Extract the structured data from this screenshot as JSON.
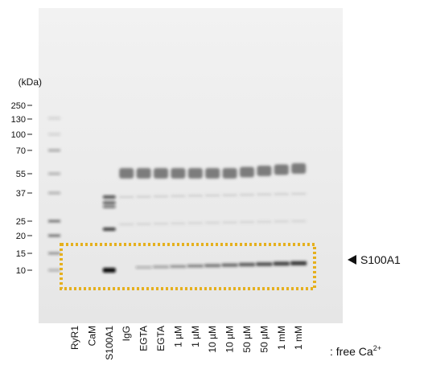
{
  "unit_label": "(kDa)",
  "markers": [
    "250",
    "130",
    "100",
    "70",
    "55",
    "37",
    "25",
    "20",
    "15",
    "10"
  ],
  "lanes": [
    "RyR1",
    "CaM",
    "S100A1",
    "IgG",
    "EGTA",
    "EGTA",
    "1 µM",
    "1 µM",
    "10 µM",
    "10 µM",
    "50 µM",
    "50 µM",
    "1 mM",
    "1 mM"
  ],
  "band_annotation": "S100A1",
  "condition_label": {
    "text": ": free Ca",
    "superscript": "2+"
  }
}
